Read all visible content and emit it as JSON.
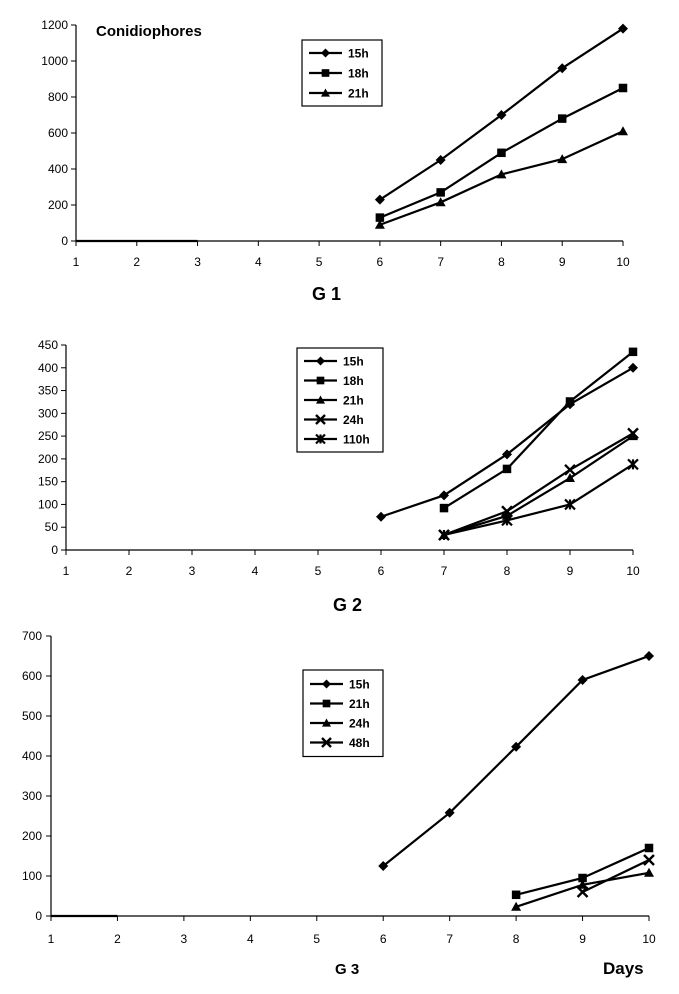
{
  "figure": {
    "footer_label": "Days"
  },
  "chart_data": [
    {
      "type": "line",
      "panel_label": "G 1",
      "title": "Conidiophores",
      "xlabel": "",
      "ylabel": "",
      "x": [
        1,
        2,
        3,
        4,
        5,
        6,
        7,
        8,
        9,
        10
      ],
      "xlim": [
        1,
        10
      ],
      "ylim": [
        0,
        1200
      ],
      "yticks": [
        0,
        200,
        400,
        600,
        800,
        1000,
        1200
      ],
      "grid": false,
      "legend_position": "top-center",
      "series": [
        {
          "name": "15h",
          "marker": "diamond",
          "values": [
            0,
            0,
            0,
            null,
            null,
            230,
            450,
            700,
            960,
            1180
          ]
        },
        {
          "name": "18h",
          "marker": "square",
          "values": [
            null,
            null,
            null,
            null,
            null,
            130,
            270,
            490,
            680,
            850
          ]
        },
        {
          "name": "21h",
          "marker": "triangle",
          "values": [
            null,
            null,
            null,
            null,
            null,
            90,
            215,
            370,
            455,
            610
          ]
        }
      ]
    },
    {
      "type": "line",
      "panel_label": "G 2",
      "title": "",
      "xlabel": "",
      "ylabel": "",
      "x": [
        1,
        2,
        3,
        4,
        5,
        6,
        7,
        8,
        9,
        10
      ],
      "xlim": [
        1,
        10
      ],
      "ylim": [
        0,
        450
      ],
      "yticks": [
        0,
        50,
        100,
        150,
        200,
        250,
        300,
        350,
        400,
        450
      ],
      "grid": false,
      "legend_position": "top-center",
      "series": [
        {
          "name": "15h",
          "marker": "diamond",
          "values": [
            null,
            null,
            null,
            null,
            null,
            73,
            120,
            210,
            320,
            400
          ]
        },
        {
          "name": "18h",
          "marker": "square",
          "values": [
            null,
            null,
            null,
            null,
            null,
            null,
            92,
            178,
            326,
            435
          ]
        },
        {
          "name": "21h",
          "marker": "triangle",
          "values": [
            null,
            null,
            null,
            null,
            null,
            null,
            33,
            75,
            158,
            250
          ]
        },
        {
          "name": "24h",
          "marker": "x",
          "values": [
            null,
            null,
            null,
            null,
            null,
            null,
            33,
            85,
            176,
            256
          ]
        },
        {
          "name": "110h",
          "marker": "star",
          "values": [
            null,
            null,
            null,
            null,
            null,
            null,
            33,
            65,
            100,
            188
          ]
        }
      ]
    },
    {
      "type": "line",
      "panel_label": "G 3",
      "title": "",
      "xlabel": "",
      "ylabel": "",
      "x": [
        1,
        2,
        3,
        4,
        5,
        6,
        7,
        8,
        9,
        10
      ],
      "xlim": [
        1,
        10
      ],
      "ylim": [
        0,
        700
      ],
      "yticks": [
        0,
        100,
        200,
        300,
        400,
        500,
        600,
        700
      ],
      "grid": false,
      "legend_position": "center",
      "series": [
        {
          "name": "15h",
          "marker": "diamond",
          "values": [
            0,
            0,
            null,
            null,
            null,
            125,
            258,
            423,
            590,
            650
          ]
        },
        {
          "name": "21h",
          "marker": "square",
          "values": [
            null,
            null,
            null,
            null,
            null,
            null,
            null,
            53,
            95,
            170
          ]
        },
        {
          "name": "24h",
          "marker": "triangle",
          "values": [
            null,
            null,
            null,
            null,
            null,
            null,
            null,
            23,
            78,
            108
          ]
        },
        {
          "name": "48h",
          "marker": "x",
          "values": [
            null,
            null,
            null,
            null,
            null,
            null,
            null,
            null,
            60,
            140
          ]
        }
      ]
    }
  ]
}
